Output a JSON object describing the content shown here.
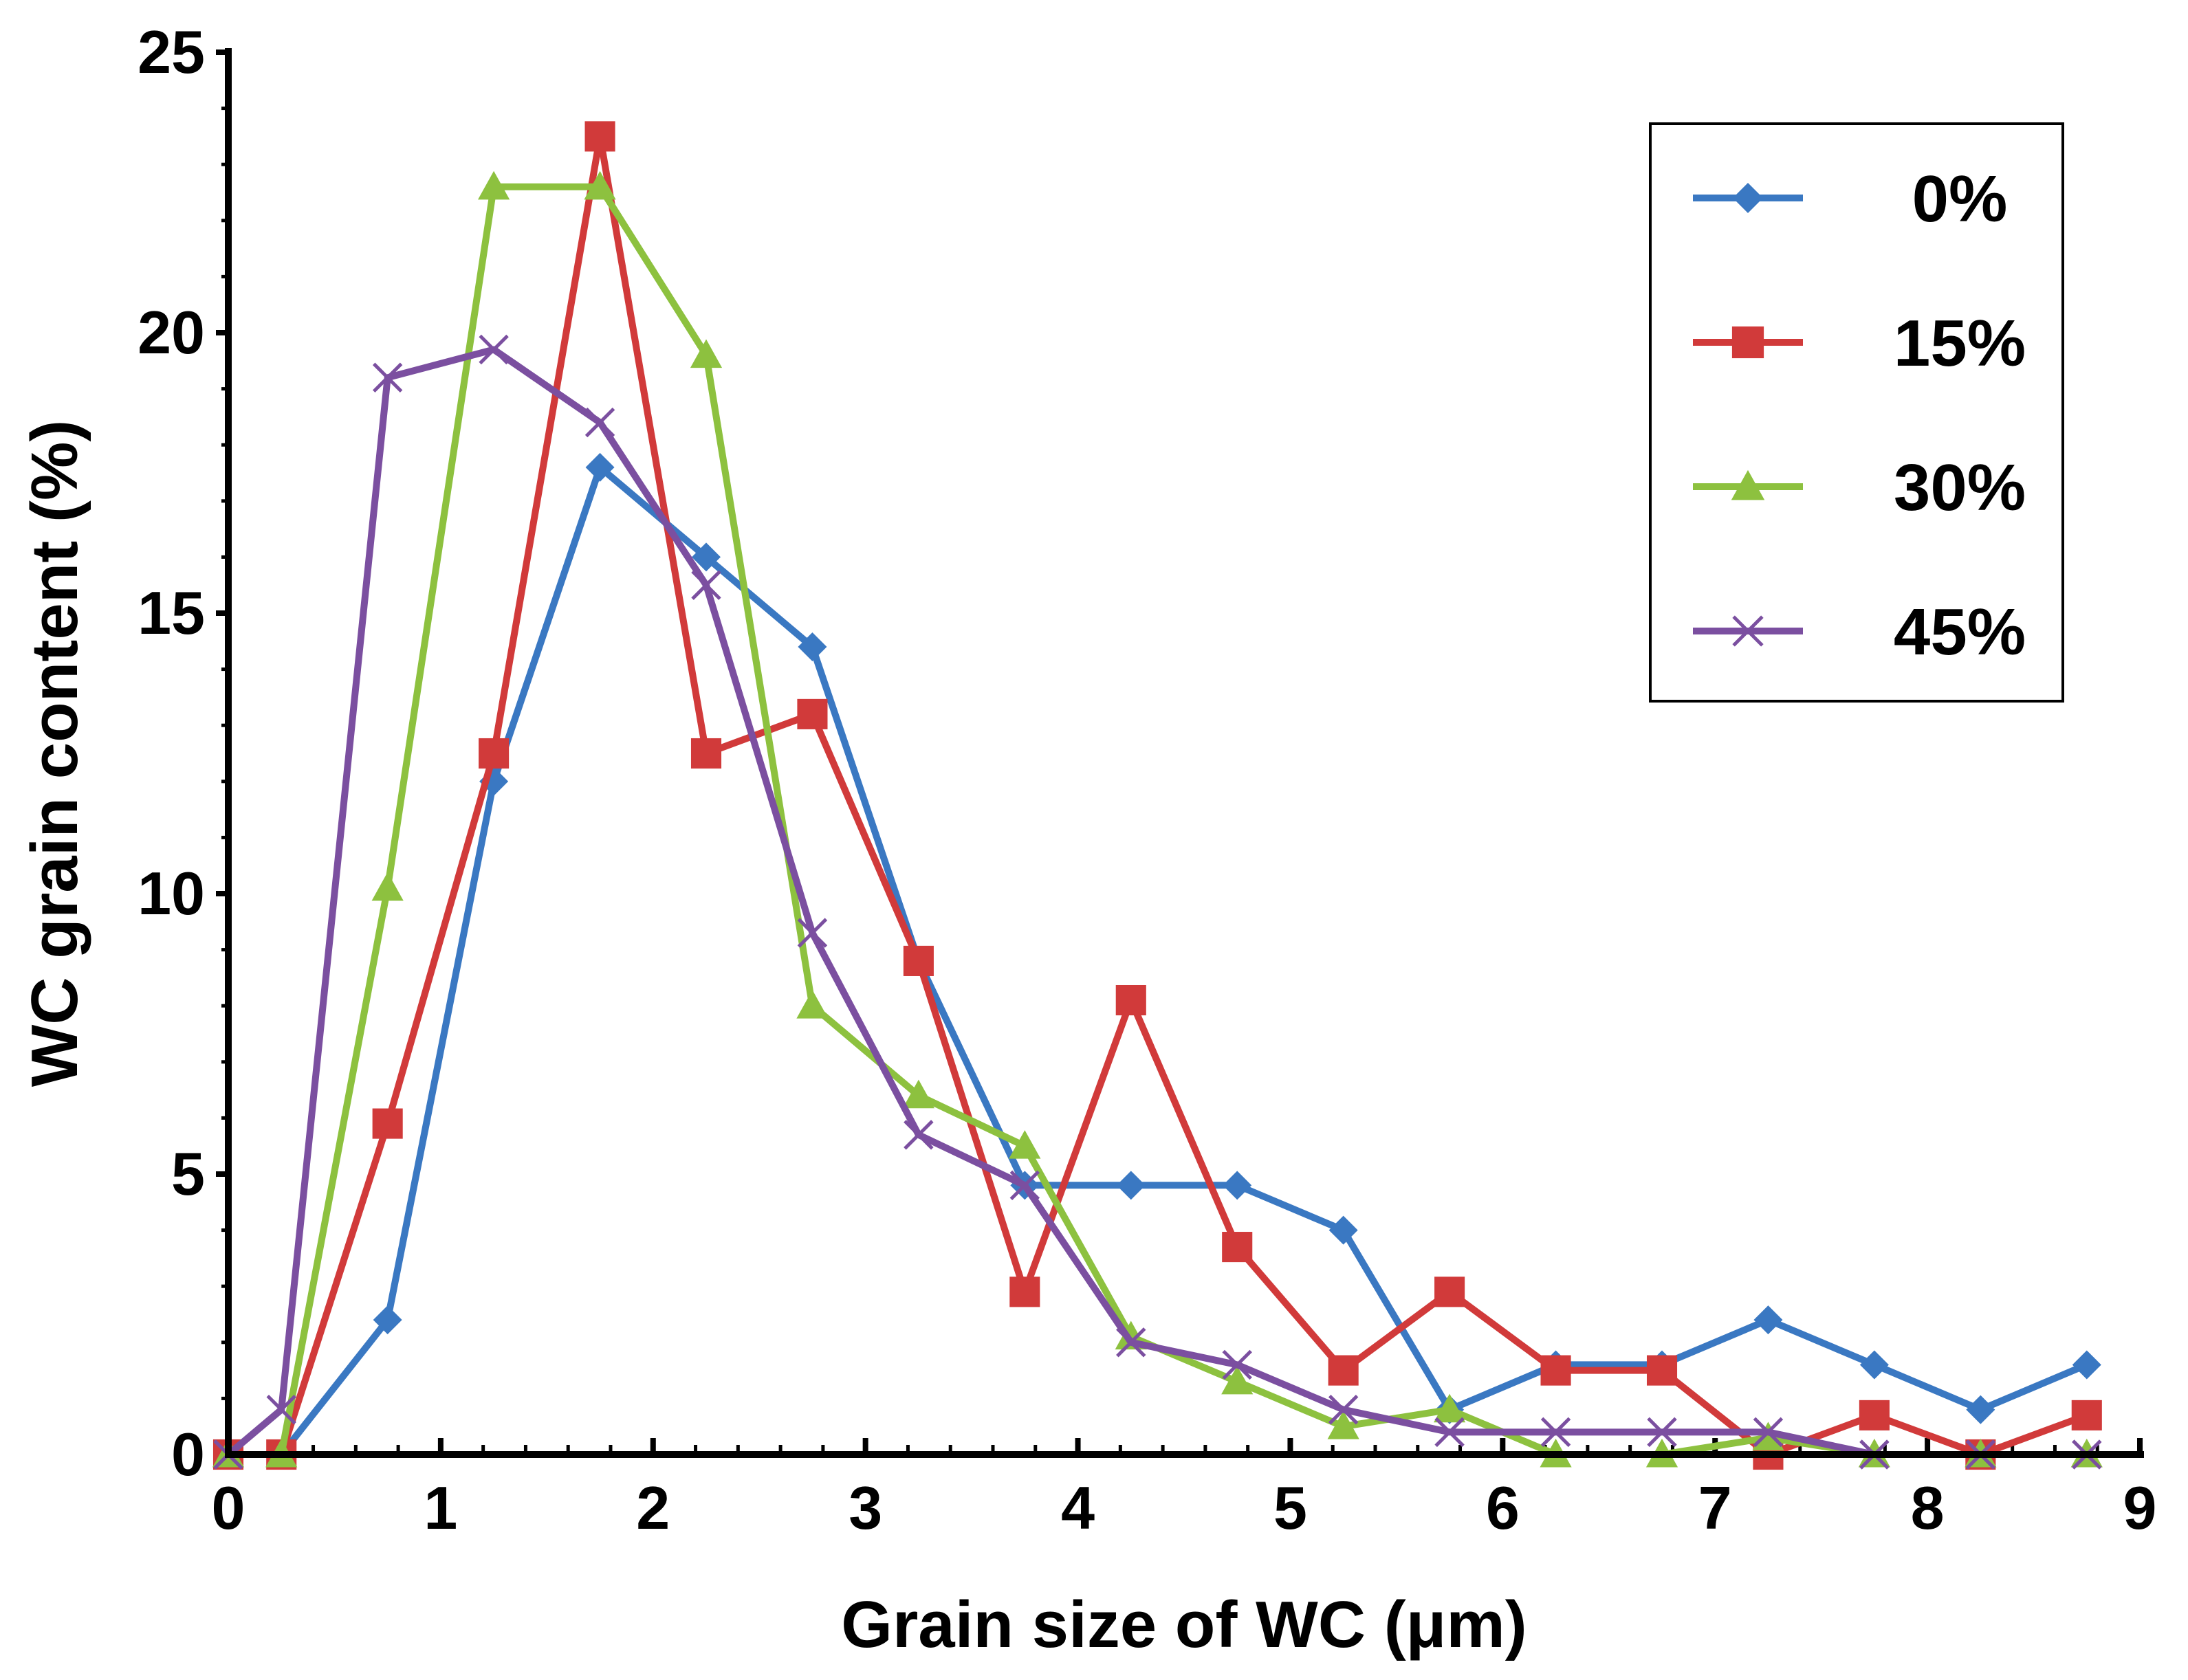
{
  "chart_data": {
    "type": "line",
    "title": "",
    "xlabel": "Grain size of WC (μm)",
    "ylabel": "WC grain content (%)",
    "xlim": [
      0,
      9
    ],
    "ylim": [
      0,
      25
    ],
    "x_ticks": [
      "0",
      "1",
      "2",
      "3",
      "4",
      "5",
      "6",
      "7",
      "8",
      "9"
    ],
    "y_ticks": [
      "0",
      "5",
      "10",
      "15",
      "20",
      "25"
    ],
    "grid": false,
    "legend_position": "top-right",
    "x": [
      0,
      0.25,
      0.75,
      1.25,
      1.75,
      2.25,
      2.75,
      3.25,
      3.75,
      4.25,
      4.75,
      5.25,
      5.75,
      6.25,
      6.75,
      7.25,
      7.75,
      8.25,
      8.75
    ],
    "series": [
      {
        "name": "0%",
        "color": "#3a78c2",
        "marker": "diamond",
        "values": [
          0,
          0,
          2.4,
          12.0,
          17.6,
          16.0,
          14.4,
          8.8,
          4.8,
          4.8,
          4.8,
          4.0,
          0.8,
          1.6,
          1.6,
          2.4,
          1.6,
          0.8,
          1.6
        ]
      },
      {
        "name": "15%",
        "color": "#d13a3a",
        "marker": "square",
        "values": [
          0,
          0,
          5.9,
          12.5,
          23.5,
          12.5,
          13.2,
          8.8,
          2.9,
          8.1,
          3.7,
          1.5,
          2.9,
          1.5,
          1.5,
          0,
          0.7,
          0,
          0.7
        ]
      },
      {
        "name": "30%",
        "color": "#8dc13f",
        "marker": "triangle",
        "values": [
          0,
          0,
          10.1,
          22.6,
          22.6,
          19.6,
          8.0,
          6.4,
          5.5,
          2.1,
          1.3,
          0.5,
          0.8,
          0,
          0,
          0.3,
          0,
          0,
          0
        ]
      },
      {
        "name": "45%",
        "color": "#7b4fa0",
        "marker": "x",
        "values": [
          0,
          0.8,
          19.2,
          19.7,
          18.4,
          15.5,
          9.3,
          5.7,
          4.8,
          2.0,
          1.6,
          0.8,
          0.4,
          0.4,
          0.4,
          0.4,
          0,
          0,
          0
        ]
      }
    ]
  }
}
